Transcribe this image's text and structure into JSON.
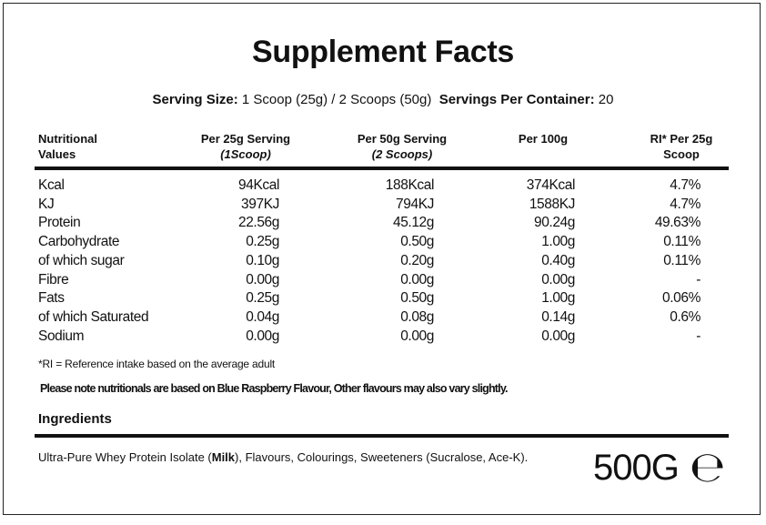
{
  "title": "Supplement Facts",
  "serving": {
    "size_label": "Serving Size:",
    "size_value": "1 Scoop (25g) / 2 Scoops (50g)",
    "per_container_label": "Servings Per Container:",
    "per_container_value": "20"
  },
  "table": {
    "headers": [
      {
        "line1": "Nutritional",
        "line2": "Values"
      },
      {
        "line1": "Per 25g Serving",
        "line2": "(1Scoop)"
      },
      {
        "line1": "Per 50g Serving",
        "line2": "(2 Scoops)"
      },
      {
        "line1": "Per 100g",
        "line2": ""
      },
      {
        "line1": "RI* Per 25g",
        "line2": "Scoop"
      }
    ],
    "rows": [
      [
        "Kcal",
        "94Kcal",
        "188Kcal",
        "374Kcal",
        "4.7%"
      ],
      [
        "KJ",
        "397KJ",
        "794KJ",
        "1588KJ",
        "4.7%"
      ],
      [
        "Protein",
        "22.56g",
        "45.12g",
        "90.24g",
        "49.63%"
      ],
      [
        "Carbohydrate",
        "0.25g",
        "0.50g",
        "1.00g",
        "0.11%"
      ],
      [
        "of which sugar",
        "0.10g",
        "0.20g",
        "0.40g",
        "0.11%"
      ],
      [
        "Fibre",
        "0.00g",
        "0.00g",
        "0.00g",
        "-"
      ],
      [
        "Fats",
        "0.25g",
        "0.50g",
        "1.00g",
        "0.06%"
      ],
      [
        "of which Saturated",
        "0.04g",
        "0.08g",
        "0.14g",
        "0.6%"
      ],
      [
        "Sodium",
        "0.00g",
        "0.00g",
        "0.00g",
        "-"
      ]
    ]
  },
  "footnote": "*RI = Reference intake based on the average adult",
  "note": "Please note nutritionals are based on Blue Raspberry Flavour, Other flavours may also vary slightly.",
  "ingredients": {
    "heading": "Ingredients",
    "before": "Ultra-Pure Whey Protein Isolate (",
    "allergen": "Milk",
    "after": "), Flavours, Colourings, Sweeteners (Sucralose, Ace-K)."
  },
  "net_weight": "500G",
  "estimated_mark": "℮"
}
